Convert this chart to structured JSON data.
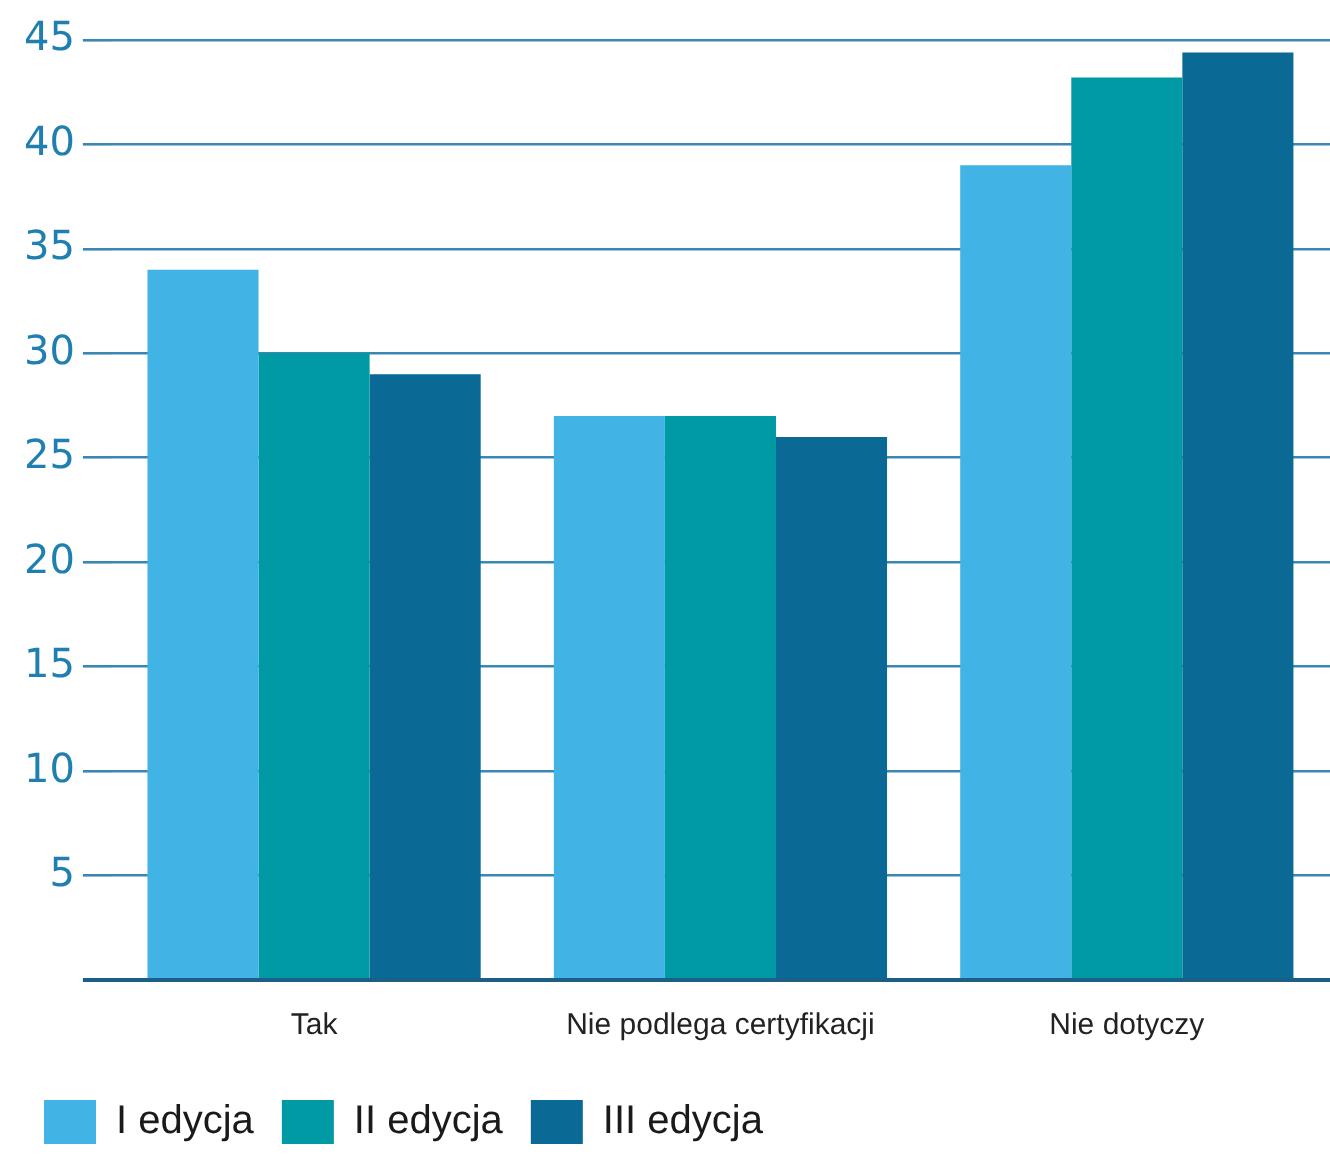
{
  "chart_data": {
    "type": "bar",
    "categories": [
      "Tak",
      "Nie podlega certyfikacji",
      "Nie dotyczy"
    ],
    "series": [
      {
        "name": "I edycja",
        "color": "#41b3e5",
        "values": [
          34,
          27,
          39
        ]
      },
      {
        "name": "II edycja",
        "color": "#009aa5",
        "values": [
          30,
          27,
          43.2
        ]
      },
      {
        "name": "III edycja",
        "color": "#0b6a95",
        "values": [
          29,
          26,
          44.4
        ]
      }
    ],
    "ylim": [
      0,
      45
    ],
    "yticks": [
      {
        "value": 0,
        "label": null
      },
      5,
      10,
      15,
      20,
      25,
      30,
      35,
      40,
      45
    ],
    "grid": "y",
    "legend": "bottom left"
  }
}
